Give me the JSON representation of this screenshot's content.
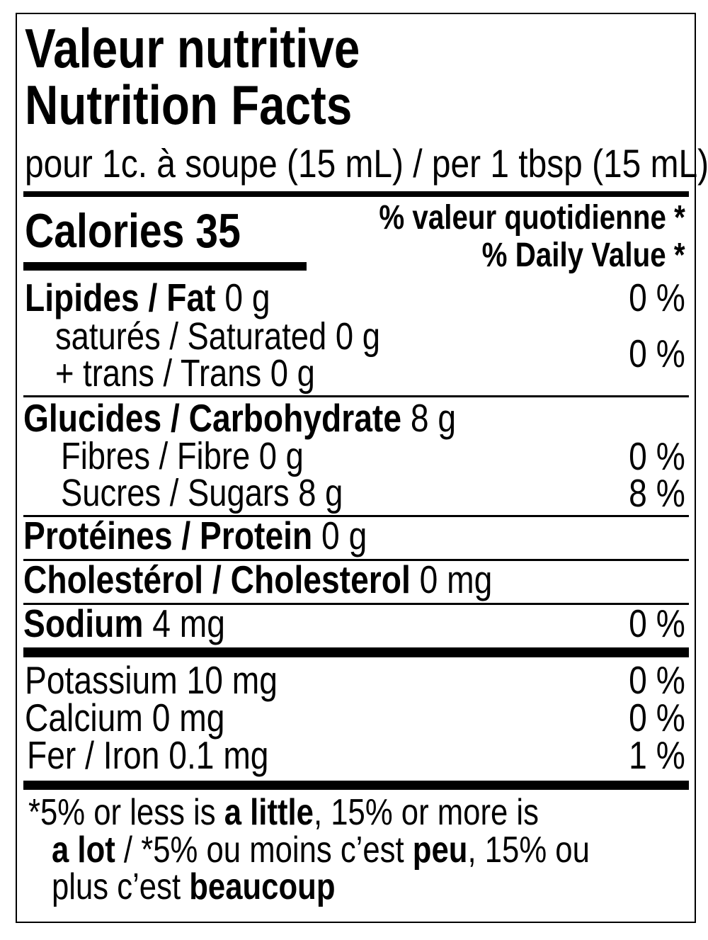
{
  "header": {
    "title_fr": "Valeur nutritive",
    "title_en": "Nutrition Facts",
    "serving": "pour 1c. à soupe (15 mL) / per 1 tbsp (15 mL)"
  },
  "calories": {
    "label": "Calories",
    "value": "35"
  },
  "dv_header": {
    "fr": "% valeur quotidienne *",
    "en": "% Daily Value *"
  },
  "nutrients": {
    "fat": {
      "label": "Lipides / Fat",
      "amount": "0 g",
      "dv": "0 %"
    },
    "saturated": {
      "label": "saturés / Saturated 0 g"
    },
    "trans": {
      "label": "+ trans / Trans 0 g",
      "dv": "0 %"
    },
    "carbohydrate": {
      "label": "Glucides / Carbohydrate",
      "amount": "8 g"
    },
    "fibre": {
      "label": "Fibres / Fibre 0 g",
      "dv": "0 %"
    },
    "sugars": {
      "label": "Sucres / Sugars 8 g",
      "dv": "8 %"
    },
    "protein": {
      "label": "Protéines / Protein",
      "amount": "0 g"
    },
    "cholesterol": {
      "label": "Cholestérol / Cholesterol",
      "amount": "0 mg"
    },
    "sodium": {
      "label": "Sodium",
      "amount": "4 mg",
      "dv": "0 %"
    },
    "potassium": {
      "label": "Potassium 10 mg",
      "dv": "0 %"
    },
    "calcium": {
      "label": "Calcium 0 mg",
      "dv": "0 %"
    },
    "iron": {
      "label": "Fer / Iron 0.1 mg",
      "dv": "1 %"
    }
  },
  "footnote": {
    "l1a": "*5% or less is ",
    "l1b": "a little",
    "l1c": ", 15% or more is",
    "l2a": "a lot",
    "l2b": " / *5% ou moins c’est ",
    "l2c": "peu",
    "l2d": ", 15% ou",
    "l3a": "plus c’est ",
    "l3b": "beaucoup"
  }
}
